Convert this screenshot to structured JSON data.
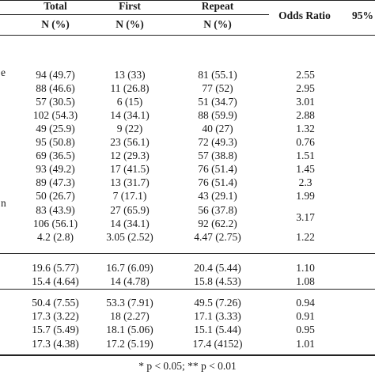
{
  "header": {
    "col_total": "Total",
    "col_first": "First",
    "col_repeat": "Repeat",
    "col_odds_ratio": "Odds Ratio",
    "col_ci_partial": "95%",
    "sub_total": "N (%)",
    "sub_first": "N (%)",
    "sub_repeat": "N (%)"
  },
  "fragments": {
    "row1": "e",
    "row10": "n"
  },
  "section1": [
    {
      "total": "94 (49.7)",
      "first": "13 (33)",
      "repeat": "81 (55.1)",
      "or": "2.55"
    },
    {
      "total": "88 (46.6)",
      "first": "11 (26.8)",
      "repeat": "77 (52)",
      "or": "2.95"
    },
    {
      "total": "57 (30.5)",
      "first": "6 (15)",
      "repeat": "51 (34.7)",
      "or": "3.01"
    },
    {
      "total": "102 (54.3)",
      "first": "14 (34.1)",
      "repeat": "88 (59.9)",
      "or": "2.88"
    },
    {
      "total": "49 (25.9)",
      "first": "9 (22)",
      "repeat": "40 (27)",
      "or": "1.32"
    },
    {
      "total": "95 (50.8)",
      "first": "23 (56.1)",
      "repeat": "72 (49.3)",
      "or": "0.76"
    },
    {
      "total": "69 (36.5)",
      "first": "12 (29.3)",
      "repeat": "57 (38.8)",
      "or": "1.51"
    },
    {
      "total": "93 (49.2)",
      "first": "17 (41.5)",
      "repeat": "76 (51.4)",
      "or": "1.45"
    },
    {
      "total": "89 (47.3)",
      "first": "13 (31.7)",
      "repeat": "76 (51.4)",
      "or": "2.3"
    },
    {
      "total": "50 (26.7)",
      "first": "7 (17.1)",
      "repeat": "43 (29.1)",
      "or": "1.99"
    },
    {
      "total": "83 (43.9)",
      "first": "27 (65.9)",
      "repeat": "56 (37.8)",
      "or": ""
    },
    {
      "total": "106 (56.1)",
      "first": "14 (34.1)",
      "repeat": "92 (62.2)",
      "or": "3.17"
    },
    {
      "total": "4.2 (2.8)",
      "first": "3.05 (2.52)",
      "repeat": "4.47 (2.75)",
      "or": "1.22"
    }
  ],
  "section2": [
    {
      "total": "19.6 (5.77)",
      "first": "16.7 (6.09)",
      "repeat": "20.4 (5.44)",
      "or": "1.10"
    },
    {
      "total": "15.4 (4.64)",
      "first": "14 (4.78)",
      "repeat": "15.8 (4.53)",
      "or": "1.08"
    }
  ],
  "section3": [
    {
      "total": "50.4 (7.55)",
      "first": "53.3 (7.91)",
      "repeat": "49.5 (7.26)",
      "or": "0.94"
    },
    {
      "total": "17.3 (3.22)",
      "first": "18 (2.27)",
      "repeat": "17.1 (3.33)",
      "or": "0.91"
    },
    {
      "total": "15.7 (5.49)",
      "first": "18.1 (5.06)",
      "repeat": "15.1 (5.44)",
      "or": "0.95"
    },
    {
      "total": "17.3 (4.38)",
      "first": "17.2 (5.19)",
      "repeat": "17.4 (4152)",
      "or": "1.01"
    }
  ],
  "footnote": "* p < 0.05; ** p < 0.01"
}
